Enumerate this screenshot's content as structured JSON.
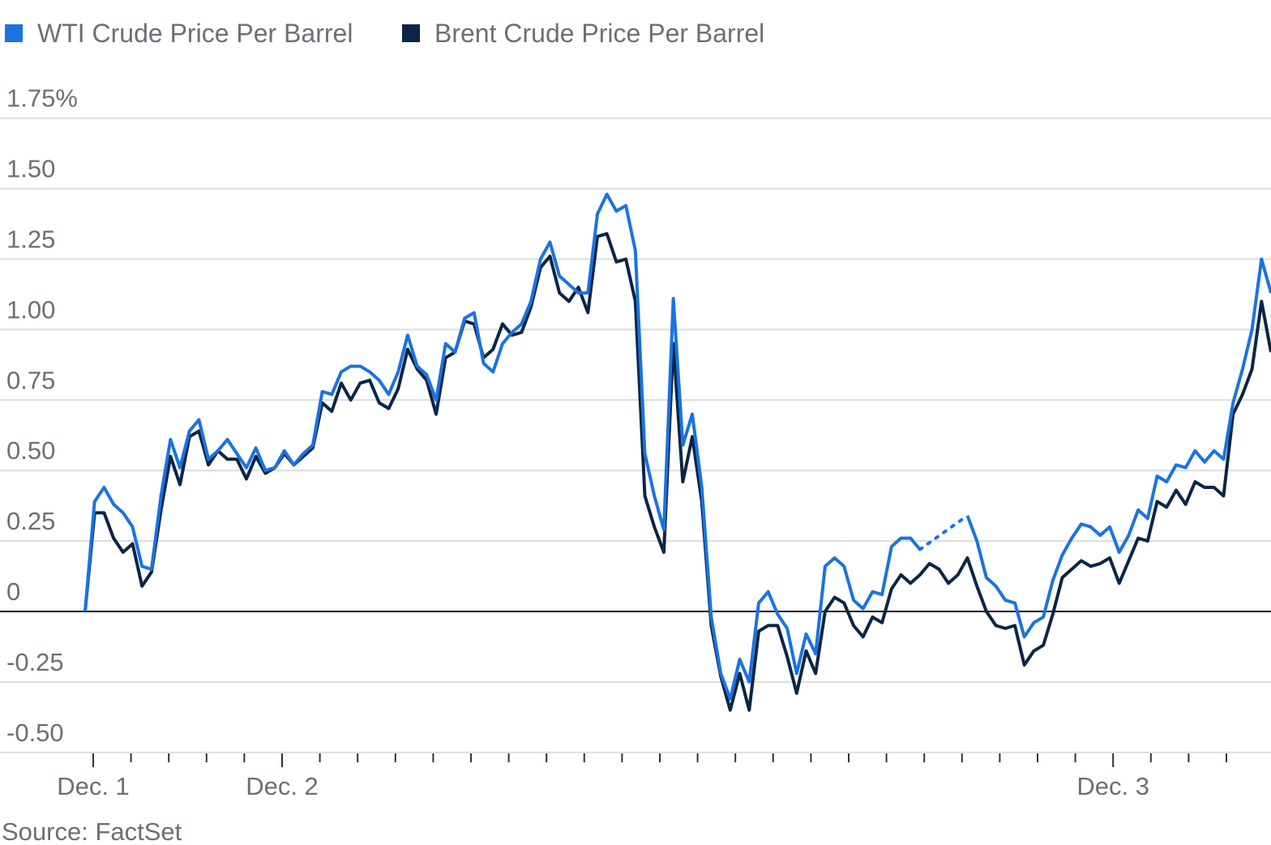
{
  "chart_data": {
    "type": "line",
    "title": "",
    "xlabel": "",
    "ylabel": "",
    "source": "Source: FactSet",
    "ylim": [
      -0.5,
      1.75
    ],
    "y_ticks": [
      {
        "value": 1.75,
        "label": "1.75%"
      },
      {
        "value": 1.5,
        "label": "1.50"
      },
      {
        "value": 1.25,
        "label": "1.25"
      },
      {
        "value": 1.0,
        "label": "1.00"
      },
      {
        "value": 0.75,
        "label": "0.75"
      },
      {
        "value": 0.5,
        "label": "0.50"
      },
      {
        "value": 0.25,
        "label": "0.25"
      },
      {
        "value": 0,
        "label": "0"
      },
      {
        "value": -0.25,
        "label": "-0.25"
      },
      {
        "value": -0.5,
        "label": "-0.50"
      }
    ],
    "x_tick_labels": [
      {
        "label": "Dec. 1",
        "tick": 0
      },
      {
        "label": "Dec. 2",
        "tick": 5
      },
      {
        "label": "Dec. 3",
        "tick": 27
      }
    ],
    "grid": true,
    "legend_position": "top-left",
    "series": [
      {
        "name": "WTI Crude Price Per Barrel",
        "color": "#1a73e0",
        "values": [
          0,
          0.39,
          0.44,
          0.38,
          0.35,
          0.3,
          0.16,
          0.15,
          0.41,
          0.61,
          0.51,
          0.64,
          0.68,
          0.54,
          0.57,
          0.61,
          0.56,
          0.51,
          0.58,
          0.5,
          0.51,
          0.57,
          0.52,
          0.56,
          0.59,
          0.78,
          0.77,
          0.85,
          0.87,
          0.87,
          0.85,
          0.82,
          0.77,
          0.85,
          0.98,
          0.87,
          0.84,
          0.75,
          0.95,
          0.92,
          1.04,
          1.06,
          0.88,
          0.85,
          0.95,
          0.99,
          1.02,
          1.1,
          1.25,
          1.31,
          1.19,
          1.16,
          1.13,
          1.13,
          1.41,
          1.48,
          1.42,
          1.44,
          1.28,
          0.56,
          0.41,
          0.29,
          1.11,
          0.59,
          0.7,
          0.44,
          -0.02,
          -0.22,
          -0.31,
          -0.17,
          -0.25,
          0.03,
          0.07,
          -0.01,
          -0.06,
          -0.22,
          -0.08,
          -0.15,
          0.16,
          0.19,
          0.16,
          0.04,
          0.01,
          0.07,
          0.06,
          0.23,
          0.26,
          0.26,
          0.22,
          null,
          null,
          null,
          null,
          0.34,
          0.25,
          0.12,
          0.09,
          0.04,
          0.03,
          -0.09,
          -0.04,
          -0.02,
          0.11,
          0.2,
          0.26,
          0.31,
          0.3,
          0.27,
          0.3,
          0.21,
          0.27,
          0.36,
          0.33,
          0.48,
          0.46,
          0.52,
          0.51,
          0.57,
          0.53,
          0.57,
          0.54,
          0.74,
          0.86,
          1.0,
          1.25,
          1.13
        ]
      },
      {
        "name": "Brent Crude Price Per Barrel",
        "color": "#0b2545",
        "values": [
          0,
          0.35,
          0.35,
          0.26,
          0.21,
          0.24,
          0.09,
          0.14,
          0.36,
          0.55,
          0.45,
          0.62,
          0.64,
          0.52,
          0.57,
          0.54,
          0.54,
          0.47,
          0.55,
          0.49,
          0.51,
          0.56,
          0.52,
          0.55,
          0.58,
          0.74,
          0.71,
          0.81,
          0.75,
          0.81,
          0.82,
          0.74,
          0.72,
          0.79,
          0.93,
          0.86,
          0.82,
          0.7,
          0.9,
          0.92,
          1.03,
          1.02,
          0.9,
          0.93,
          1.02,
          0.98,
          0.99,
          1.08,
          1.22,
          1.26,
          1.13,
          1.1,
          1.15,
          1.06,
          1.33,
          1.34,
          1.24,
          1.25,
          1.1,
          0.41,
          0.3,
          0.21,
          0.95,
          0.46,
          0.62,
          0.39,
          -0.05,
          -0.23,
          -0.35,
          -0.22,
          -0.35,
          -0.07,
          -0.05,
          -0.05,
          -0.16,
          -0.29,
          -0.14,
          -0.22,
          0.0,
          0.05,
          0.03,
          -0.05,
          -0.09,
          -0.02,
          -0.04,
          0.08,
          0.13,
          0.1,
          0.13,
          0.17,
          0.15,
          0.1,
          0.13,
          0.19,
          0.09,
          0.0,
          -0.05,
          -0.06,
          -0.05,
          -0.19,
          -0.14,
          -0.12,
          -0.01,
          0.12,
          0.15,
          0.18,
          0.16,
          0.17,
          0.19,
          0.1,
          0.18,
          0.26,
          0.25,
          0.39,
          0.37,
          0.43,
          0.38,
          0.46,
          0.44,
          0.44,
          0.41,
          0.7,
          0.77,
          0.86,
          1.1,
          0.92
        ]
      }
    ]
  }
}
